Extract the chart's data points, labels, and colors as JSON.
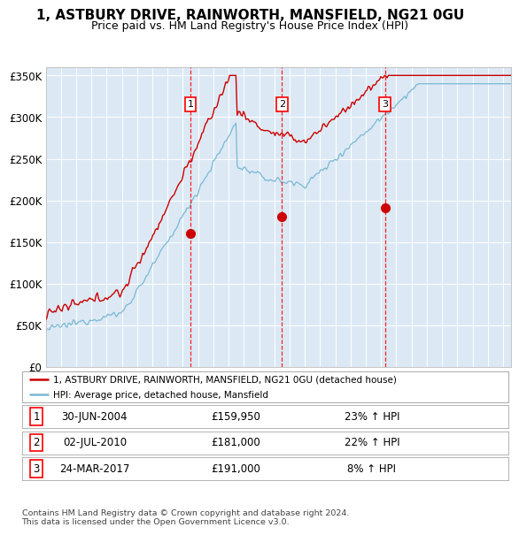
{
  "title": "1, ASTBURY DRIVE, RAINWORTH, MANSFIELD, NG21 0GU",
  "subtitle": "Price paid vs. HM Land Registry's House Price Index (HPI)",
  "title_fontsize": 11,
  "subtitle_fontsize": 9,
  "background_color": "#ffffff",
  "plot_bg_color": "#dce9f5",
  "grid_color": "#ffffff",
  "ylim": [
    0,
    360000
  ],
  "yticks": [
    0,
    50000,
    100000,
    150000,
    200000,
    250000,
    300000,
    350000
  ],
  "ytick_labels": [
    "£0",
    "£50K",
    "£100K",
    "£150K",
    "£200K",
    "£250K",
    "£300K",
    "£350K"
  ],
  "sale_dates_num": [
    2004.5,
    2010.5,
    2017.25
  ],
  "sale_prices": [
    159950,
    181000,
    191000
  ],
  "sale_labels": [
    "1",
    "2",
    "3"
  ],
  "sale_info": [
    {
      "label": "1",
      "date": "30-JUN-2004",
      "price": "£159,950",
      "hpi": "23% ↑ HPI"
    },
    {
      "label": "2",
      "date": "02-JUL-2010",
      "price": "£181,000",
      "hpi": "22% ↑ HPI"
    },
    {
      "label": "3",
      "date": "24-MAR-2017",
      "price": "£191,000",
      "hpi": "8% ↑ HPI"
    }
  ],
  "legend_entries": [
    "1, ASTBURY DRIVE, RAINWORTH, MANSFIELD, NG21 0GU (detached house)",
    "HPI: Average price, detached house, Mansfield"
  ],
  "line_color_red": "#cc0000",
  "line_color_blue": "#7ab8d4",
  "footer_text": "Contains HM Land Registry data © Crown copyright and database right 2024.\nThis data is licensed under the Open Government Licence v3.0.",
  "xmin": 1995,
  "xmax": 2025.5
}
